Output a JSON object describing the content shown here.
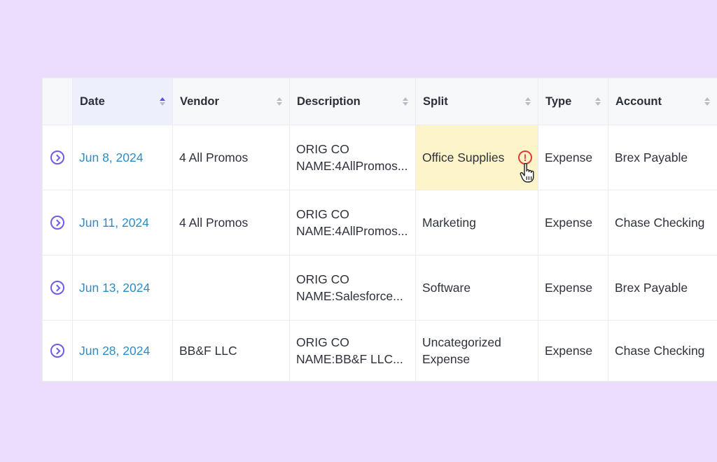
{
  "table": {
    "columns": [
      {
        "label": "",
        "sort": "none"
      },
      {
        "label": "Date",
        "sort": "asc"
      },
      {
        "label": "Vendor",
        "sort": "none"
      },
      {
        "label": "Description",
        "sort": "none"
      },
      {
        "label": "Split",
        "sort": "none"
      },
      {
        "label": "Type",
        "sort": "none"
      },
      {
        "label": "Account",
        "sort": "none"
      }
    ],
    "rows": [
      {
        "date": "Jun 8, 2024",
        "vendor": "4 All Promos",
        "description_line1": "ORIG CO",
        "description_line2": "NAME:4AllPromos...",
        "split": "Office Supplies",
        "type": "Expense",
        "account": "Brex Payable",
        "warning": "!"
      },
      {
        "date": "Jun 11, 2024",
        "vendor": "4 All Promos",
        "description_line1": "ORIG CO",
        "description_line2": "NAME:4AllPromos...",
        "split": "Marketing",
        "type": "Expense",
        "account": "Chase Checking"
      },
      {
        "date": "Jun 13, 2024",
        "vendor": "",
        "description_line1": "ORIG CO",
        "description_line2": "NAME:Salesforce...",
        "split": "Software",
        "type": "Expense",
        "account": "Brex Payable"
      },
      {
        "date": "Jun 28, 2024",
        "vendor": "BB&F LLC",
        "description_line1": "ORIG CO",
        "description_line2": "NAME:BB&F LLC...",
        "split_line1": "Uncategorized",
        "split_line2": "Expense",
        "type": "Expense",
        "account": "Chase Checking"
      }
    ]
  },
  "colors": {
    "background": "#ecdcfd",
    "accent": "#6b5ee6",
    "date_link": "#2c8cc9",
    "warning": "#e03a3a",
    "highlight": "#fdf5c9"
  },
  "icons": {
    "expand": "chevron-right-circle-icon",
    "warning": "exclamation-circle-icon",
    "cursor": "hand-pointer-icon",
    "sort": "sort-arrows-icon"
  }
}
